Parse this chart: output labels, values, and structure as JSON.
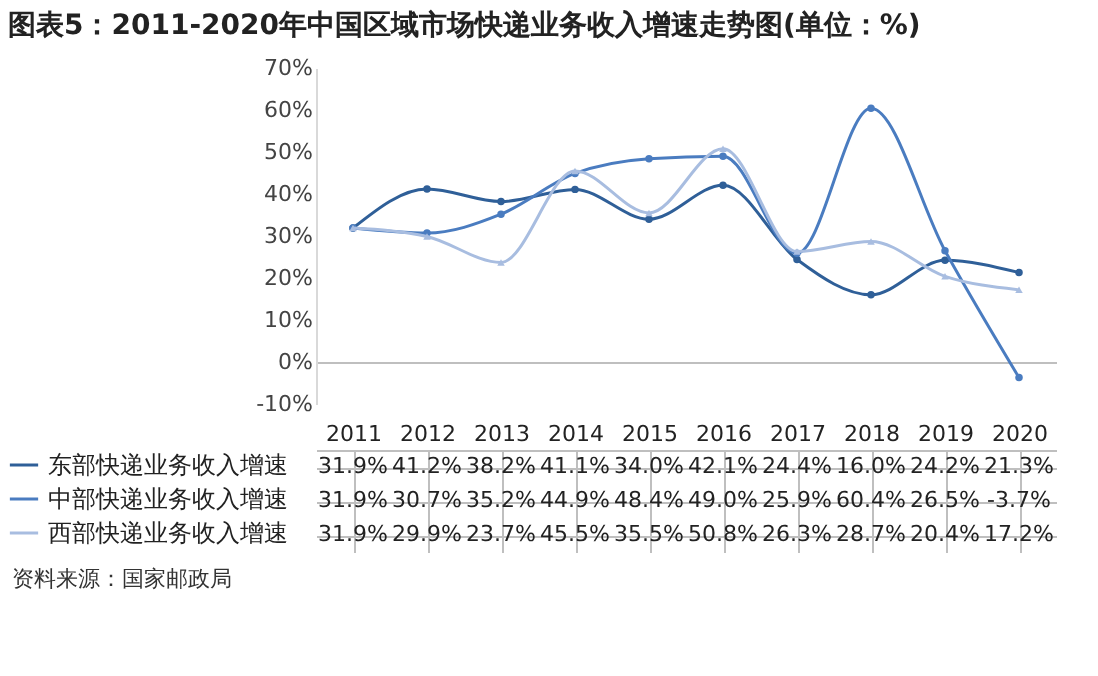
{
  "chart_data": {
    "type": "line",
    "title": "图表5：2011-2020年中国区域市场快递业务收入增速走势图(单位：%)",
    "categories": [
      "2011",
      "2012",
      "2013",
      "2014",
      "2015",
      "2016",
      "2017",
      "2018",
      "2019",
      "2020"
    ],
    "series": [
      {
        "name": "东部快递业务收入增速",
        "color": "#2f5f98",
        "marker": "circle",
        "values": [
          31.9,
          41.2,
          38.2,
          41.1,
          34.0,
          42.1,
          24.4,
          16.0,
          24.2,
          21.3
        ],
        "value_labels": [
          "31.9%",
          "41.2%",
          "38.2%",
          "41.1%",
          "34.0%",
          "42.1%",
          "24.4%",
          "16.0%",
          "24.2%",
          "21.3%"
        ]
      },
      {
        "name": "中部快递业务收入增速",
        "color": "#4a7cc0",
        "marker": "circle",
        "values": [
          31.9,
          30.7,
          35.2,
          44.9,
          48.4,
          49.0,
          25.9,
          60.4,
          26.5,
          -3.7
        ],
        "value_labels": [
          "31.9%",
          "30.7%",
          "35.2%",
          "44.9%",
          "48.4%",
          "49.0%",
          "25.9%",
          "60.4%",
          "26.5%",
          "-3.7%"
        ]
      },
      {
        "name": "西部快递业务收入增速",
        "color": "#a8bde0",
        "marker": "triangle",
        "values": [
          31.9,
          29.9,
          23.7,
          45.5,
          35.5,
          50.8,
          26.3,
          28.7,
          20.4,
          17.2
        ],
        "value_labels": [
          "31.9%",
          "29.9%",
          "23.7%",
          "45.5%",
          "35.5%",
          "50.8%",
          "26.3%",
          "28.7%",
          "20.4%",
          "17.2%"
        ]
      }
    ],
    "ylim": [
      -10,
      70
    ],
    "yticks": [
      {
        "value": -10,
        "label": "-10%"
      },
      {
        "value": 0,
        "label": "0%"
      },
      {
        "value": 10,
        "label": "10%"
      },
      {
        "value": 20,
        "label": "20%"
      },
      {
        "value": 30,
        "label": "30%"
      },
      {
        "value": 40,
        "label": "40%"
      },
      {
        "value": 50,
        "label": "50%"
      },
      {
        "value": 60,
        "label": "60%"
      },
      {
        "value": 70,
        "label": "70%"
      }
    ],
    "legend": "bottom",
    "annotations": [
      "资料来源：国家邮政局"
    ]
  }
}
